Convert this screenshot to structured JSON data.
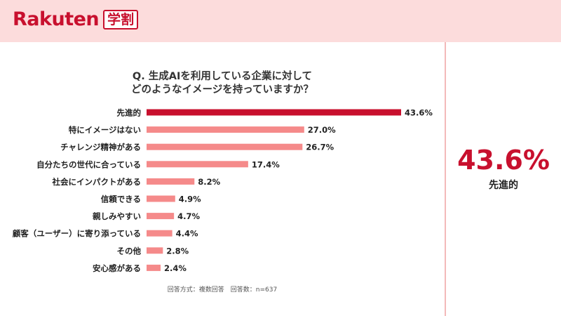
{
  "header": {
    "logo_text": "Rakuten",
    "logo_badge": "学割"
  },
  "footnote": "回答方式：複数回答　回答数：n=637",
  "highlight": {
    "value": "43.6%",
    "label": "先進的"
  },
  "colors": {
    "top_bar": "#c8102e",
    "bar": "#f58a8a",
    "accent": "#c8102e",
    "background": "#fcdcdc"
  },
  "chart_data": {
    "type": "bar",
    "orientation": "horizontal",
    "title_lines": [
      "Q. 生成AIを利用している企業に対して",
      "どのようなイメージを持っていますか？"
    ],
    "categories": [
      "先進的",
      "特にイメージはない",
      "チャレンジ精神がある",
      "自分たちの世代に合っている",
      "社会にインパクトがある",
      "信頼できる",
      "親しみやすい",
      "顧客（ユーザー）に寄り添っている",
      "その他",
      "安心感がある"
    ],
    "values": [
      43.6,
      27.0,
      26.7,
      17.4,
      8.2,
      4.9,
      4.7,
      4.4,
      2.8,
      2.4
    ],
    "value_labels": [
      "43.6%",
      "27.0%",
      "26.7%",
      "17.4%",
      "8.2%",
      "4.9%",
      "4.7%",
      "4.4%",
      "2.8%",
      "2.4%"
    ],
    "xlim": [
      0,
      43.6
    ],
    "grid": false,
    "legend": "none"
  }
}
